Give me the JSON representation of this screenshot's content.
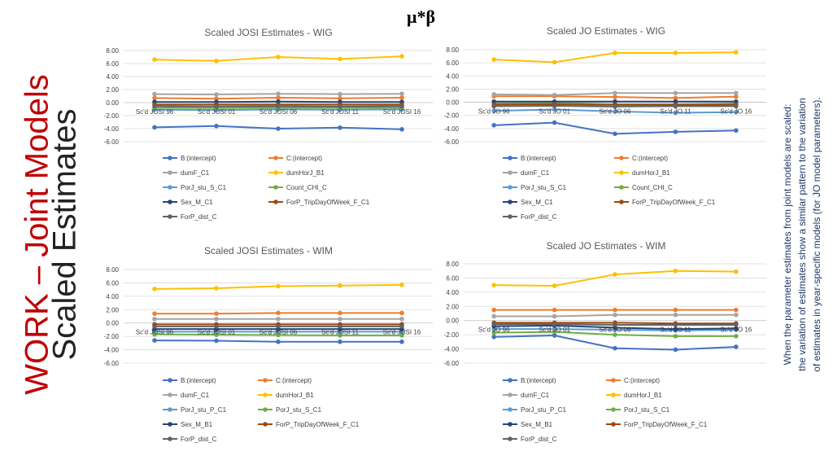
{
  "slide": {
    "side_title_red": "WORK – Joint Models",
    "side_title_black": "Scaled Estimates",
    "header": "μ*β",
    "note_lines": [
      "When the parameter estimates from joint models are scaled:",
      "the variation of estimates show a similar pattern to the variation",
      "of estimates in year-specific models (for JO model parameters)."
    ]
  },
  "chart_data": [
    {
      "type": "line",
      "title": "Scaled JOSI Estimates - WIG",
      "categories": [
        "Sc'd JOSI 96",
        "Sc'd JOSI 01",
        "Sc'd JOSI 06",
        "Sc'd JOSI 11",
        "Sc'd JOSI 16"
      ],
      "ylim": [
        -6,
        8
      ],
      "yticks": [
        "8.00",
        "6.00",
        "4.00",
        "2.00",
        "0.00",
        "-2.00",
        "-4.00",
        "-6.00"
      ],
      "series": [
        {
          "name": "B:(intercept)",
          "color": "#4472c4",
          "values": [
            -3.8,
            -3.6,
            -4.0,
            -3.85,
            -4.1
          ]
        },
        {
          "name": "C:(intercept)",
          "color": "#ed7d31",
          "values": [
            0.7,
            0.6,
            0.75,
            0.65,
            0.75
          ]
        },
        {
          "name": "dumF_C1",
          "color": "#a5a5a5",
          "values": [
            1.3,
            1.25,
            1.35,
            1.3,
            1.35
          ]
        },
        {
          "name": "dumHorJ_B1",
          "color": "#ffc000",
          "values": [
            6.6,
            6.4,
            7.0,
            6.7,
            7.1
          ]
        },
        {
          "name": "PorJ_stu_S_C1",
          "color": "#5b9bd5",
          "values": [
            -1.1,
            -1.15,
            -1.05,
            -1.1,
            -1.05
          ]
        },
        {
          "name": "Count_CHI_C",
          "color": "#70ad47",
          "values": [
            -0.8,
            -0.85,
            -0.8,
            -0.8,
            -0.8
          ]
        },
        {
          "name": "Sex_M_C1",
          "color": "#264478",
          "values": [
            0.1,
            0.1,
            0.15,
            0.1,
            0.1
          ]
        },
        {
          "name": "ForP_TripDayOfWeek_F_C1",
          "color": "#9e480e",
          "values": [
            -0.3,
            -0.3,
            -0.3,
            -0.3,
            -0.3
          ]
        },
        {
          "name": "ForP_dist_C",
          "color": "#636363",
          "values": [
            -0.55,
            -0.6,
            -0.55,
            -0.6,
            -0.55
          ]
        }
      ]
    },
    {
      "type": "line",
      "title": "Scaled JO Estimates - WIG",
      "categories": [
        "Sc'd JO 96",
        "Sc'd JO 01",
        "Sc'd JO 06",
        "Sc'd JO 11",
        "Sc'd JO 16"
      ],
      "ylim": [
        -6,
        8
      ],
      "yticks": [
        "8.00",
        "6.00",
        "4.00",
        "2.00",
        "0.00",
        "-2.00",
        "-4.00",
        "-6.00"
      ],
      "series": [
        {
          "name": "B:(intercept)",
          "color": "#4472c4",
          "values": [
            -3.5,
            -3.1,
            -4.8,
            -4.5,
            -4.3
          ]
        },
        {
          "name": "C:(intercept)",
          "color": "#ed7d31",
          "values": [
            0.9,
            0.9,
            0.8,
            0.65,
            0.85
          ]
        },
        {
          "name": "dumF_C1",
          "color": "#a5a5a5",
          "values": [
            1.2,
            1.1,
            1.4,
            1.4,
            1.4
          ]
        },
        {
          "name": "dumHorJ_B1",
          "color": "#ffc000",
          "values": [
            6.5,
            6.1,
            7.5,
            7.5,
            7.6
          ]
        },
        {
          "name": "PorJ_stu_S_C1",
          "color": "#5b9bd5",
          "values": [
            -1.3,
            -1.1,
            -1.4,
            -1.6,
            -1.5
          ]
        },
        {
          "name": "Count_CHI_C",
          "color": "#70ad47",
          "values": [
            -0.2,
            -0.1,
            -0.3,
            -0.3,
            -0.2
          ]
        },
        {
          "name": "Sex_M_C1",
          "color": "#264478",
          "values": [
            0.1,
            0.1,
            0.1,
            0.1,
            0.1
          ]
        },
        {
          "name": "ForP_TripDayOfWeek_F_C1",
          "color": "#9e480e",
          "values": [
            -0.35,
            -0.3,
            -0.4,
            -0.4,
            -0.35
          ]
        },
        {
          "name": "ForP_dist_C",
          "color": "#636363",
          "values": [
            -0.6,
            -0.55,
            -0.65,
            -0.6,
            -0.6
          ]
        }
      ]
    },
    {
      "type": "line",
      "title": "Scaled JOSI Estimates - WIM",
      "categories": [
        "Sc'd JOSI 96",
        "Sc'd JOSI 01",
        "Sc'd JOSI 06",
        "Sc'd JOSI 11",
        "Sc'd JOSI 16"
      ],
      "ylim": [
        -6,
        8
      ],
      "yticks": [
        "8.00",
        "6.00",
        "4.00",
        "2.00",
        "0.00",
        "-2.00",
        "-4.00",
        "-6.00"
      ],
      "series": [
        {
          "name": "B:(intercept)",
          "color": "#4472c4",
          "values": [
            -2.6,
            -2.65,
            -2.8,
            -2.8,
            -2.8
          ]
        },
        {
          "name": "C:(intercept)",
          "color": "#ed7d31",
          "values": [
            1.4,
            1.4,
            1.5,
            1.5,
            1.5
          ]
        },
        {
          "name": "dumF_C1",
          "color": "#a5a5a5",
          "values": [
            0.6,
            0.6,
            0.6,
            0.6,
            0.6
          ]
        },
        {
          "name": "dumHorJ_B1",
          "color": "#ffc000",
          "values": [
            5.1,
            5.2,
            5.5,
            5.6,
            5.7
          ]
        },
        {
          "name": "PorJ_stu_P_C1",
          "color": "#5b9bd5",
          "values": [
            -1.3,
            -1.3,
            -1.3,
            -1.3,
            -1.3
          ]
        },
        {
          "name": "PorJ_stu_S_C1",
          "color": "#70ad47",
          "values": [
            -1.7,
            -1.75,
            -1.8,
            -1.85,
            -1.85
          ]
        },
        {
          "name": "Sex_M_B1",
          "color": "#264478",
          "values": [
            -0.9,
            -0.9,
            -0.9,
            -0.9,
            -0.9
          ]
        },
        {
          "name": "ForP_TripDayOfWeek_F_C1",
          "color": "#9e480e",
          "values": [
            -0.2,
            -0.2,
            -0.2,
            -0.2,
            -0.2
          ]
        },
        {
          "name": "ForP_dist_C",
          "color": "#636363",
          "values": [
            -0.5,
            -0.5,
            -0.5,
            -0.5,
            -0.5
          ]
        }
      ]
    },
    {
      "type": "line",
      "title": "Scaled JO Estimates - WIM",
      "categories": [
        "Sc'd JO 96",
        "Sc'd JO 01",
        "Sc'd JO 06",
        "Sc'd JO 11",
        "Sc'd JO 16"
      ],
      "ylim": [
        -6,
        8
      ],
      "yticks": [
        "8.00",
        "6.00",
        "4.00",
        "2.00",
        "0.00",
        "-2.00",
        "-4.00",
        "-6.00"
      ],
      "series": [
        {
          "name": "B:(intercept)",
          "color": "#4472c4",
          "values": [
            -2.3,
            -2.1,
            -3.9,
            -4.1,
            -3.7
          ]
        },
        {
          "name": "C:(intercept)",
          "color": "#ed7d31",
          "values": [
            1.5,
            1.5,
            1.5,
            1.5,
            1.5
          ]
        },
        {
          "name": "dumF_C1",
          "color": "#a5a5a5",
          "values": [
            0.6,
            0.6,
            0.8,
            0.8,
            0.8
          ]
        },
        {
          "name": "dumHorJ_B1",
          "color": "#ffc000",
          "values": [
            5.0,
            4.9,
            6.5,
            7.0,
            6.9
          ]
        },
        {
          "name": "PorJ_stu_P_C1",
          "color": "#5b9bd5",
          "values": [
            -1.2,
            -1.2,
            -1.3,
            -1.4,
            -1.3
          ]
        },
        {
          "name": "PorJ_stu_S_C1",
          "color": "#70ad47",
          "values": [
            -1.7,
            -1.6,
            -2.0,
            -2.2,
            -2.2
          ]
        },
        {
          "name": "Sex_M_B1",
          "color": "#264478",
          "values": [
            -0.8,
            -0.7,
            -1.0,
            -1.2,
            -1.1
          ]
        },
        {
          "name": "ForP_TripDayOfWeek_F_C1",
          "color": "#9e480e",
          "values": [
            -0.3,
            -0.3,
            -0.3,
            -0.4,
            -0.4
          ]
        },
        {
          "name": "ForP_dist_C",
          "color": "#636363",
          "values": [
            -0.5,
            -0.5,
            -0.6,
            -0.6,
            -0.6
          ]
        }
      ]
    }
  ]
}
